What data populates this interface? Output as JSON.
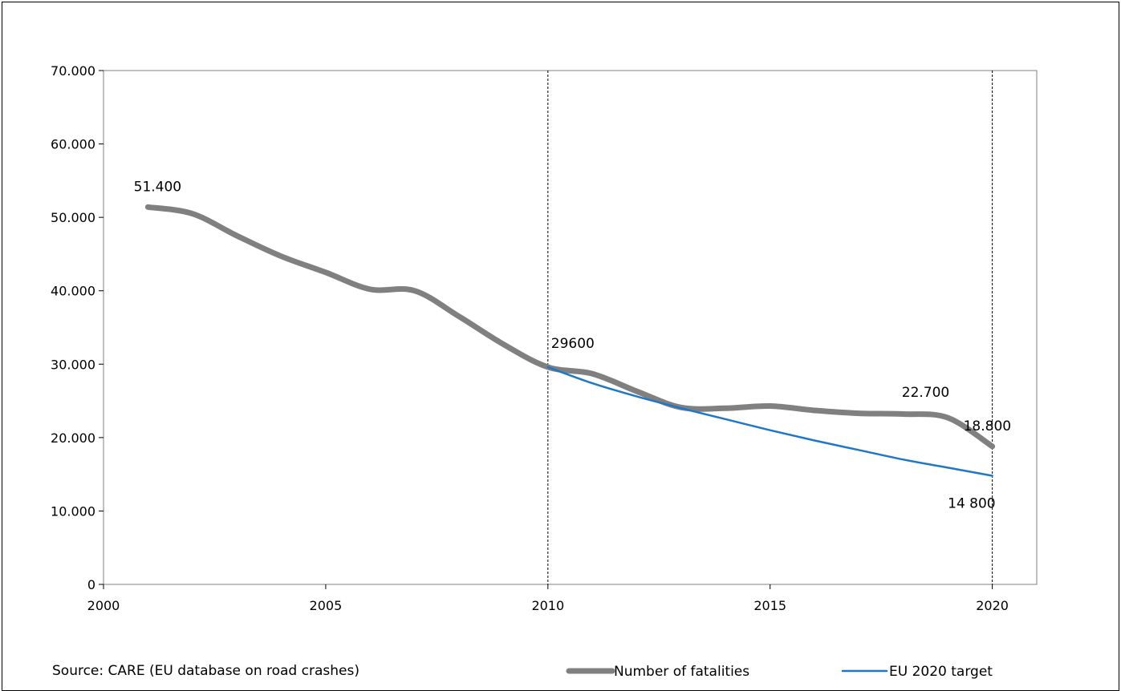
{
  "chart_data": {
    "type": "line",
    "x_range": [
      2000,
      2021
    ],
    "ylim": [
      0,
      70000
    ],
    "x_ticks": [
      {
        "value": 2000,
        "label": "2000"
      },
      {
        "value": 2005,
        "label": "2005"
      },
      {
        "value": 2010,
        "label": "2010"
      },
      {
        "value": 2015,
        "label": "2015"
      },
      {
        "value": 2020,
        "label": "2020"
      }
    ],
    "y_ticks": [
      {
        "value": 0,
        "label": "0"
      },
      {
        "value": 10000,
        "label": "10.000"
      },
      {
        "value": 20000,
        "label": "20.000"
      },
      {
        "value": 30000,
        "label": "30.000"
      },
      {
        "value": 40000,
        "label": "40.000"
      },
      {
        "value": 50000,
        "label": "50.000"
      },
      {
        "value": 60000,
        "label": "60.000"
      },
      {
        "value": 70000,
        "label": "70.000"
      }
    ],
    "grid": false,
    "vertical_markers": [
      2010,
      2020
    ],
    "series": [
      {
        "name": "Number of fatalities",
        "color": "#808080",
        "x": [
          2001,
          2002,
          2003,
          2004,
          2005,
          2006,
          2007,
          2008,
          2009,
          2010,
          2011,
          2012,
          2013,
          2014,
          2015,
          2016,
          2017,
          2018,
          2019,
          2020
        ],
        "values": [
          51400,
          50500,
          47500,
          44700,
          42500,
          40200,
          40000,
          36500,
          32700,
          29600,
          28700,
          26300,
          24100,
          24000,
          24300,
          23700,
          23300,
          23200,
          22700,
          18800
        ]
      },
      {
        "name": "EU 2020 target",
        "color": "#1F77C9",
        "x": [
          2010,
          2011,
          2012,
          2013,
          2014,
          2015,
          2016,
          2017,
          2018,
          2019,
          2020
        ],
        "values": [
          29600,
          27400,
          25600,
          24000,
          22500,
          21000,
          19600,
          18300,
          17000,
          15900,
          14800
        ]
      }
    ],
    "annotations": [
      {
        "x": 2001,
        "y": 51400,
        "text": "51.400"
      },
      {
        "x": 2010,
        "y": 29600,
        "text": "29600"
      },
      {
        "x": 2019,
        "y": 22700,
        "text": "22.700"
      },
      {
        "x": 2020,
        "y": 18800,
        "text": "18.800"
      },
      {
        "x": 2020,
        "y": 14800,
        "text": "14 800"
      }
    ],
    "legend_position": "bottom-right"
  },
  "source_note": "Source: CARE (EU database on road crashes)"
}
